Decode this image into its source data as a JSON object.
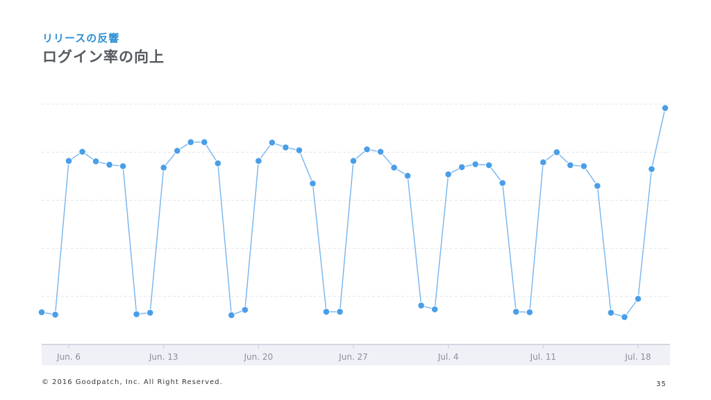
{
  "header": {
    "subtitle": "リリースの反響",
    "title": "ログイン率の向上"
  },
  "footer": {
    "copyright": "© 2016 Goodpatch, Inc. All Right Reserved.",
    "page_number": "35"
  },
  "colors": {
    "accent": "#2d8fd6",
    "series": "#4a9ee8",
    "line": "#7cb8ef",
    "grid": "#e1e4e8",
    "axis_band": "#f0f1f7",
    "tick_text": "#8a8f98"
  },
  "chart_data": {
    "type": "line",
    "title": "",
    "xlabel": "",
    "ylabel": "",
    "grid": true,
    "legend": "none",
    "x_tick_labels": [
      "Jun. 6",
      "Jun. 13",
      "Jun. 20",
      "Jun. 27",
      "Jul. 4",
      "Jul. 11",
      "Jul. 18"
    ],
    "x_tick_indices": [
      2,
      9,
      16,
      23,
      30,
      37,
      44
    ],
    "ylim": [
      0,
      5
    ],
    "series": [
      {
        "values": [
          0.67,
          0.62,
          3.82,
          4.01,
          3.81,
          3.74,
          3.71,
          0.63,
          0.66,
          3.68,
          4.03,
          4.21,
          4.21,
          3.77,
          0.61,
          0.72,
          3.82,
          4.2,
          4.1,
          4.04,
          3.35,
          0.68,
          0.68,
          3.82,
          4.06,
          4.01,
          3.68,
          3.51,
          0.81,
          0.73,
          3.54,
          3.69,
          3.75,
          3.73,
          3.36,
          0.68,
          0.67,
          3.79,
          4.0,
          3.73,
          3.71,
          3.3,
          0.66,
          0.57,
          0.95,
          3.65,
          4.92
        ]
      }
    ]
  }
}
